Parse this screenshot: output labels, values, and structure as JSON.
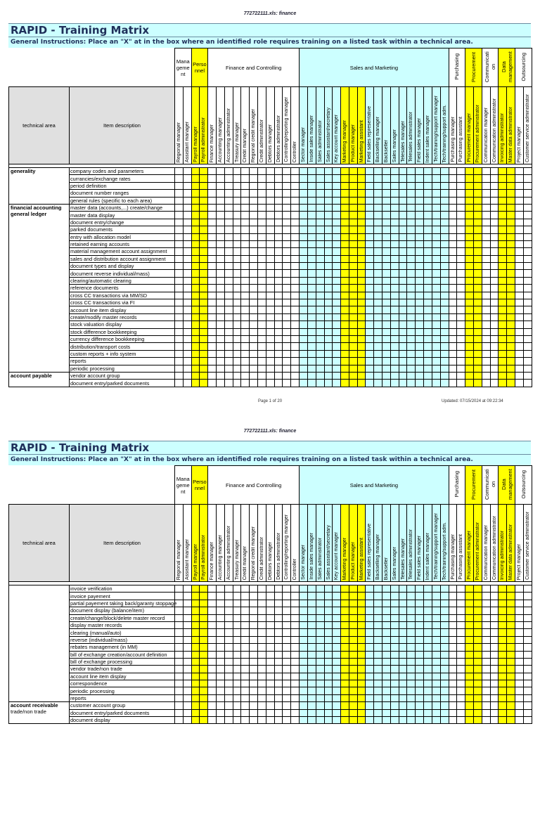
{
  "file_header": "772722111.xls:  finance",
  "title": "RAPID - Training Matrix",
  "instructions": "General Instructions:  Place an \"X\" at in the box where an identified role requires training on a listed task within a technical area.",
  "columns_header": {
    "technical_area": "technical area",
    "item_description": "Item description"
  },
  "colors": {
    "yellow": "#ffff00",
    "cyan": "#ccffff",
    "white": "#ffffff",
    "header_gray": "#e0e0e0"
  },
  "groups": [
    {
      "label": "Mana geme nt",
      "rotated": false,
      "color": "white",
      "roles": [
        "Regional manager",
        "Assistant manager"
      ]
    },
    {
      "label": "Perso nnel",
      "rotated": false,
      "color": "yellow",
      "roles": [
        "Payroll manager",
        "Payroll administrator"
      ]
    },
    {
      "label": "Finance and Controlling",
      "rotated": false,
      "color": "white",
      "roles": [
        "Finance manager",
        "Accounting manager",
        "Accounting administrator",
        "Treasury manager",
        "Credit manager",
        "Regional credit manager",
        "Credit administrator",
        "Debtors manager",
        "Debtors administrator",
        "Controlling/reporting manager",
        "Controller"
      ]
    },
    {
      "label": "Sales and Marketing",
      "rotated": false,
      "color": "cyan",
      "highlight_roles": [
        "Marketing manager",
        "Product manager",
        "Marketing assistant"
      ],
      "roles": [
        "Sector manager",
        "Inside sales manager",
        "Sales administrator",
        "Sales assistant/secretary",
        "Key account manager",
        "Marketing manager",
        "Product manager",
        "Marketing assistant",
        "Field sales representative",
        "Backselling manager",
        "Backseller",
        "Sales manager",
        "Telesales manager",
        "Telesales administrator",
        "Field sales manager",
        "Indent sales manager",
        "Tech/training/support manager",
        "Tech/training/support adm."
      ]
    },
    {
      "label": "Purchasing",
      "rotated": true,
      "color": "white",
      "roles": [
        "Purchasing manager",
        "Purchasing assistant"
      ]
    },
    {
      "label": "Procurement",
      "rotated": true,
      "color": "yellow",
      "roles": [
        "Procurement manager",
        "Procurement administrator"
      ]
    },
    {
      "label": "Communicati on",
      "rotated": true,
      "color": "white",
      "roles": [
        "Communication manager",
        "Communication administrator"
      ]
    },
    {
      "label": "Data management",
      "rotated": true,
      "color": "yellow",
      "roles": [
        "Invoicing administrator",
        "Master data administrator"
      ]
    },
    {
      "label": "Outsourcing",
      "rotated": true,
      "color": "white",
      "roles": [
        "Project manager",
        "Customer service administrator"
      ]
    }
  ],
  "pages": [
    {
      "footer_page": "Page 1 of 20",
      "footer_updated": "Updated:  07/15/2024 at 09:22:34",
      "sections": [
        {
          "area": "generality",
          "area_sub": "",
          "items": [
            "company codes and parameters",
            "currancies/exchange rates",
            "period definition",
            "document number ranges",
            "general rules (specific to each area)"
          ]
        },
        {
          "area": "financial accounting general ledger",
          "area_sub": "",
          "items": [
            "master data (accounts,...) create/change",
            "master data display",
            "document entry/change",
            "parked documents",
            "entry with allocation model",
            "retained earning accounts",
            "material management account assignment",
            "sales and distribution account assignment",
            "document types and display",
            "document reverse individual/mass)",
            "clearing/automatic clearing",
            "reference documents",
            "cross CC transactions via MM/SD",
            "cross CC transactions via FI",
            "account line item display",
            "create/modify master records",
            "stock valuation display",
            "stock difference bookkeeping",
            "currency difference bookkeeping",
            "distribution/transport costs",
            "custom reports + info system",
            "reports",
            "periodic processing"
          ]
        },
        {
          "area": "account payable",
          "area_sub": "",
          "items": [
            "vendor account group",
            "document entry/parked documents"
          ]
        }
      ]
    },
    {
      "footer_page": "",
      "footer_updated": "",
      "sections": [
        {
          "area": "",
          "area_sub": "",
          "items": [
            "invoice verification",
            "invoice payement",
            "partial payement taking back/garanty stoppage",
            "document display (balance/item)",
            "create/change/block/delete master record",
            "display master records",
            "clearing (manual/auto)",
            "reverse (individual/mass)",
            "rebates management (in MM)",
            "bill of exchange creation/account definition",
            "bill of exchange processing",
            "vendor trade/non trade",
            "account line item display",
            "correspondence",
            "periodic processing",
            "reports"
          ]
        },
        {
          "area": "account receivable",
          "area_sub": "trade/non trade",
          "items": [
            "customer account group",
            "document entry/parked documents",
            "document display"
          ]
        }
      ]
    }
  ]
}
